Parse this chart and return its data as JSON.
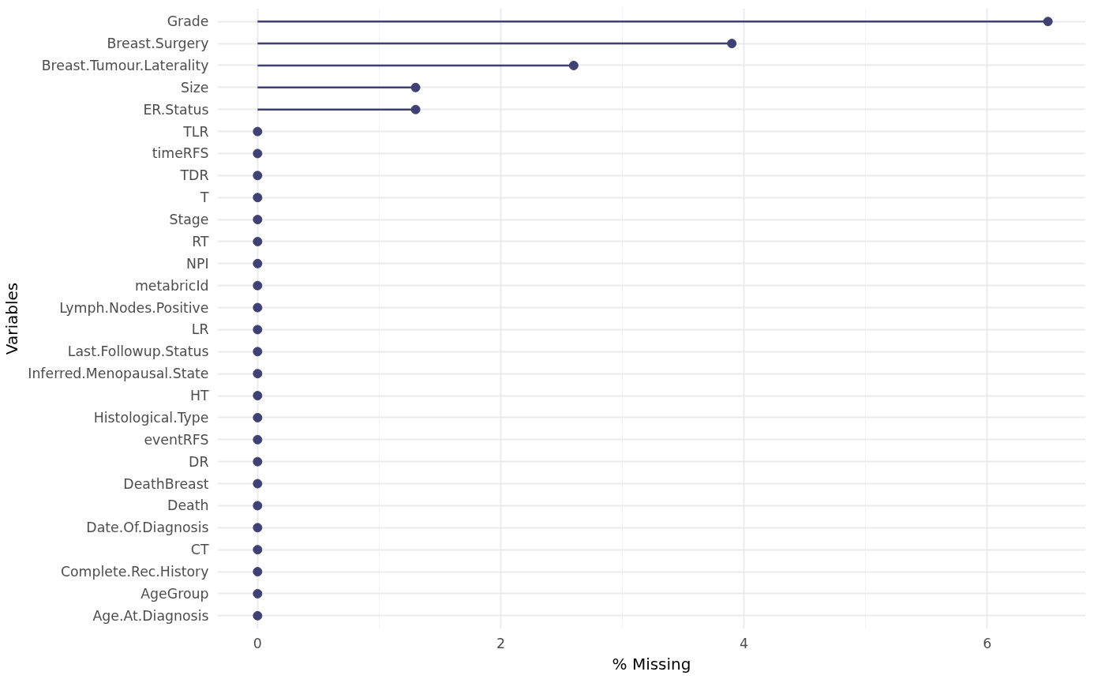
{
  "chart_data": {
    "type": "lollipop",
    "orientation": "horizontal",
    "xlabel": "% Missing",
    "ylabel": "Variables",
    "categories": [
      "Grade",
      "Breast.Surgery",
      "Breast.Tumour.Laterality",
      "Size",
      "ER.Status",
      "TLR",
      "timeRFS",
      "TDR",
      "T",
      "Stage",
      "RT",
      "NPI",
      "metabricId",
      "Lymph.Nodes.Positive",
      "LR",
      "Last.Followup.Status",
      "Inferred.Menopausal.State",
      "HT",
      "Histological.Type",
      "eventRFS",
      "DR",
      "DeathBreast",
      "Death",
      "Date.Of.Diagnosis",
      "CT",
      "Complete.Rec.History",
      "AgeGroup",
      "Age.At.Diagnosis"
    ],
    "values": [
      6.5,
      3.9,
      2.6,
      1.3,
      1.3,
      0,
      0,
      0,
      0,
      0,
      0,
      0,
      0,
      0,
      0,
      0,
      0,
      0,
      0,
      0,
      0,
      0,
      0,
      0,
      0,
      0,
      0,
      0
    ],
    "color": "#3f4175",
    "xlim": [
      -0.33,
      6.81
    ],
    "xticks": [
      0,
      2,
      4,
      6
    ],
    "grid": true,
    "marker": "circle"
  }
}
